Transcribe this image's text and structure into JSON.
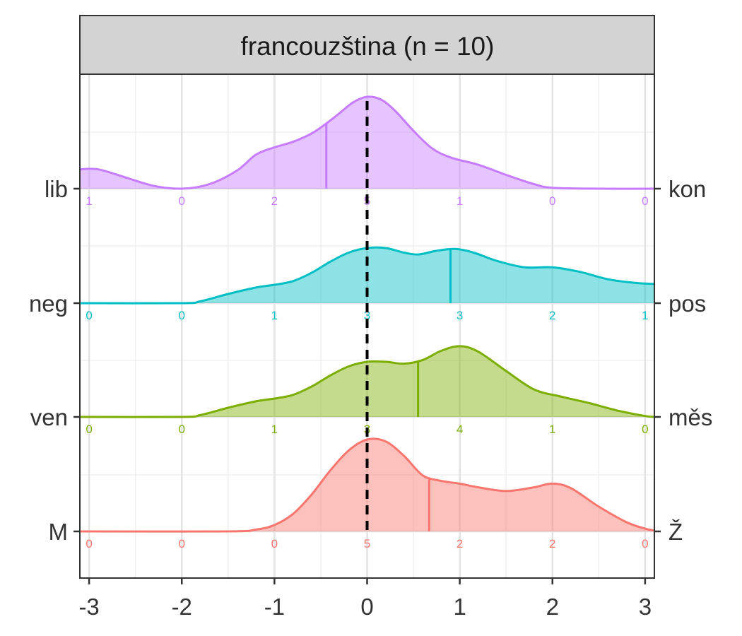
{
  "chart_data": {
    "type": "area",
    "title": "francouzština (n = 10)",
    "xlabel": "",
    "ylabel": "",
    "xlim": [
      -3.1,
      3.1
    ],
    "x_ticks": [
      "-3",
      "-2",
      "-1",
      "0",
      "1",
      "2",
      "3"
    ],
    "reference_line_x": 0,
    "grid": true,
    "legend": "none",
    "series": [
      {
        "left_label": "lib",
        "right_label": "kon",
        "color": "#C77CFF",
        "mean": -0.44,
        "counts": [
          "1",
          "0",
          "2",
          "5",
          "1",
          "0",
          "0"
        ],
        "density": [
          [
            -3.1,
            0.21
          ],
          [
            -2.9,
            0.21
          ],
          [
            -2.6,
            0.12
          ],
          [
            -2.3,
            0.03
          ],
          [
            -2.0,
            0.0
          ],
          [
            -1.7,
            0.05
          ],
          [
            -1.4,
            0.2
          ],
          [
            -1.2,
            0.37
          ],
          [
            -1.0,
            0.45
          ],
          [
            -0.8,
            0.51
          ],
          [
            -0.6,
            0.6
          ],
          [
            -0.44,
            0.71
          ],
          [
            -0.3,
            0.82
          ],
          [
            -0.15,
            0.94
          ],
          [
            0.0,
            1.0
          ],
          [
            0.15,
            0.97
          ],
          [
            0.3,
            0.85
          ],
          [
            0.5,
            0.63
          ],
          [
            0.7,
            0.44
          ],
          [
            0.9,
            0.34
          ],
          [
            1.2,
            0.26
          ],
          [
            1.5,
            0.15
          ],
          [
            1.8,
            0.05
          ],
          [
            2.0,
            0.01
          ],
          [
            2.5,
            0.0
          ],
          [
            3.1,
            0.0
          ]
        ]
      },
      {
        "left_label": "neg",
        "right_label": "pos",
        "color": "#00BFC4",
        "mean": 0.9,
        "counts": [
          "0",
          "0",
          "1",
          "3",
          "3",
          "2",
          "1"
        ],
        "density": [
          [
            -3.1,
            0.0
          ],
          [
            -2.0,
            0.0
          ],
          [
            -1.8,
            0.02
          ],
          [
            -1.5,
            0.1
          ],
          [
            -1.2,
            0.17
          ],
          [
            -1.0,
            0.2
          ],
          [
            -0.8,
            0.24
          ],
          [
            -0.6,
            0.33
          ],
          [
            -0.4,
            0.45
          ],
          [
            -0.2,
            0.55
          ],
          [
            0.0,
            0.6
          ],
          [
            0.2,
            0.6
          ],
          [
            0.4,
            0.55
          ],
          [
            0.55,
            0.53
          ],
          [
            0.75,
            0.57
          ],
          [
            0.95,
            0.59
          ],
          [
            1.15,
            0.55
          ],
          [
            1.4,
            0.46
          ],
          [
            1.7,
            0.39
          ],
          [
            2.0,
            0.39
          ],
          [
            2.3,
            0.34
          ],
          [
            2.6,
            0.26
          ],
          [
            2.9,
            0.22
          ],
          [
            3.1,
            0.21
          ]
        ]
      },
      {
        "left_label": "ven",
        "right_label": "měs",
        "color": "#7CAE00",
        "mean": 0.55,
        "counts": [
          "0",
          "0",
          "1",
          "3",
          "4",
          "1",
          "0"
        ],
        "density": [
          [
            -3.1,
            0.0
          ],
          [
            -2.0,
            0.0
          ],
          [
            -1.8,
            0.02
          ],
          [
            -1.5,
            0.1
          ],
          [
            -1.2,
            0.17
          ],
          [
            -1.0,
            0.2
          ],
          [
            -0.8,
            0.24
          ],
          [
            -0.6,
            0.33
          ],
          [
            -0.4,
            0.45
          ],
          [
            -0.2,
            0.55
          ],
          [
            0.0,
            0.6
          ],
          [
            0.2,
            0.6
          ],
          [
            0.4,
            0.58
          ],
          [
            0.6,
            0.62
          ],
          [
            0.8,
            0.72
          ],
          [
            1.0,
            0.77
          ],
          [
            1.2,
            0.71
          ],
          [
            1.5,
            0.5
          ],
          [
            1.8,
            0.3
          ],
          [
            2.1,
            0.22
          ],
          [
            2.4,
            0.15
          ],
          [
            2.7,
            0.07
          ],
          [
            3.0,
            0.01
          ],
          [
            3.1,
            0.0
          ]
        ]
      },
      {
        "left_label": "M",
        "right_label": "Ž",
        "color": "#F8766D",
        "mean": 0.67,
        "counts": [
          "0",
          "0",
          "0",
          "5",
          "2",
          "2",
          "0"
        ],
        "density": [
          [
            -3.1,
            0.0
          ],
          [
            -1.5,
            0.0
          ],
          [
            -1.2,
            0.02
          ],
          [
            -1.0,
            0.07
          ],
          [
            -0.8,
            0.19
          ],
          [
            -0.6,
            0.4
          ],
          [
            -0.4,
            0.66
          ],
          [
            -0.2,
            0.88
          ],
          [
            0.0,
            1.0
          ],
          [
            0.2,
            0.98
          ],
          [
            0.4,
            0.82
          ],
          [
            0.6,
            0.61
          ],
          [
            0.8,
            0.55
          ],
          [
            1.0,
            0.52
          ],
          [
            1.2,
            0.48
          ],
          [
            1.5,
            0.44
          ],
          [
            1.8,
            0.48
          ],
          [
            2.0,
            0.52
          ],
          [
            2.2,
            0.47
          ],
          [
            2.5,
            0.27
          ],
          [
            2.8,
            0.1
          ],
          [
            3.0,
            0.03
          ],
          [
            3.1,
            0.01
          ]
        ]
      }
    ]
  }
}
